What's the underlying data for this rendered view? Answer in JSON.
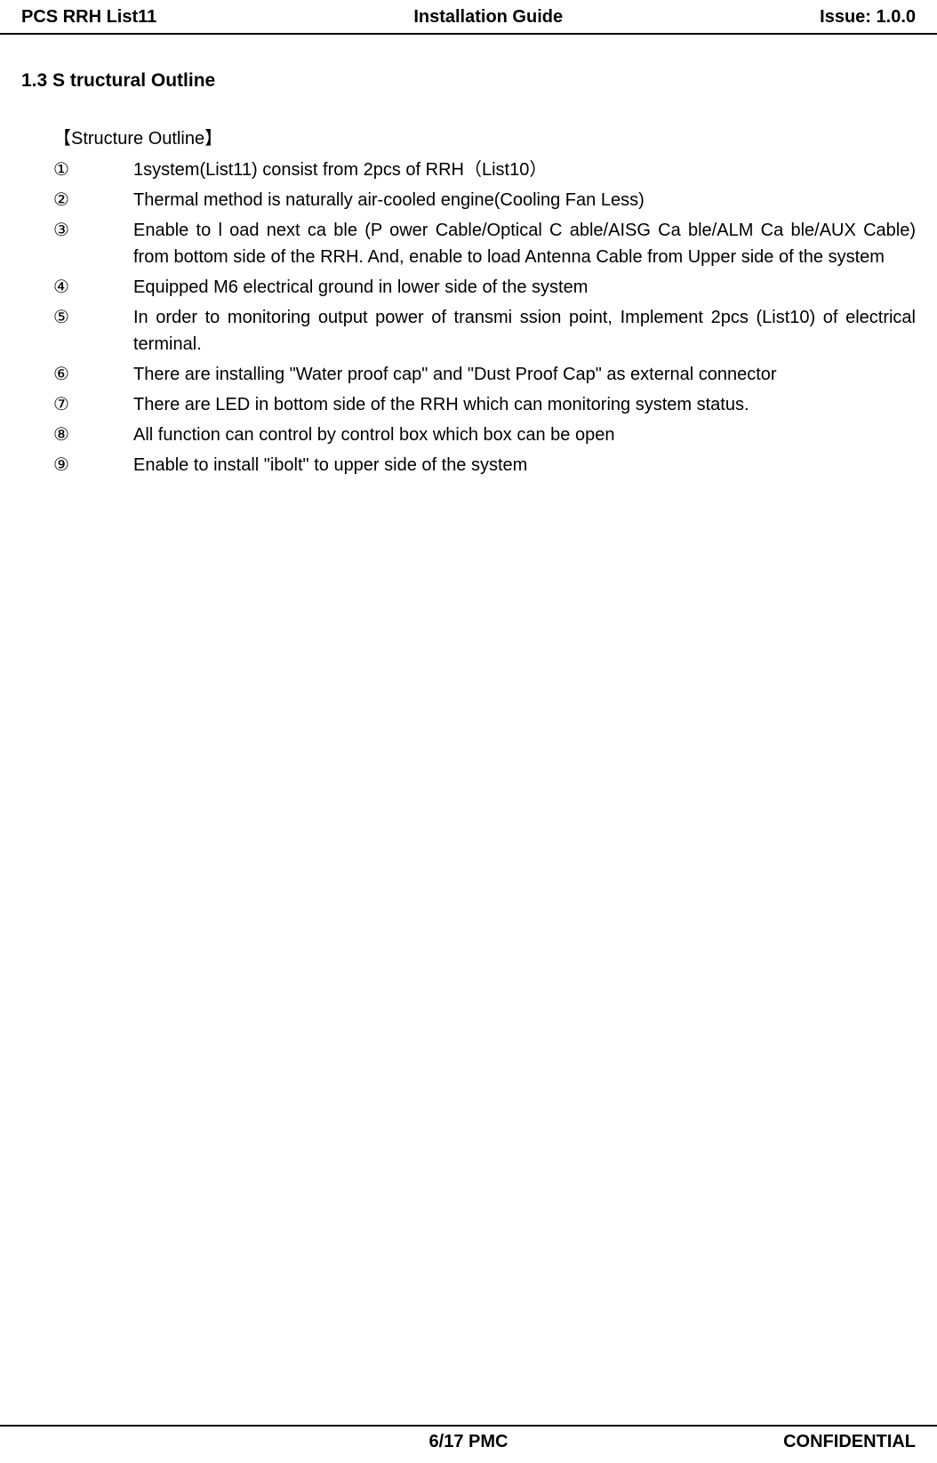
{
  "header": {
    "left": "PCS RRH List11",
    "center": "Installation Guide",
    "right": "Issue: 1.0.0"
  },
  "section": {
    "heading": "1.3 S tructural Outline",
    "subheading": "【Structure Outline】"
  },
  "outline": [
    {
      "number": "①",
      "text": "1system(List11) consist from 2pcs of RRH（List10）"
    },
    {
      "number": "②",
      "text": "Thermal method is naturally air-cooled engine(Cooling Fan Less)"
    },
    {
      "number": "③",
      "text": "Enable to l oad  next ca ble (P ower  Cable/Optical C able/AISG Ca ble/ALM Ca ble/AUX Cable) from bottom side of the RRH. And, enable to load Antenna Cable from Upper side of the system"
    },
    {
      "number": "④",
      "text": "Equipped M6 electrical ground in lower side of the system"
    },
    {
      "number": "⑤",
      "text": "In order to  monitoring output power of transmi ssion point, Implement 2pcs (List10) of electrical terminal."
    },
    {
      "number": "⑥",
      "text": "There are installing \"Water proof cap\" and \"Dust Proof Cap\" as external connector"
    },
    {
      "number": "⑦",
      "text": "There are LED in bottom side of the RRH which can monitoring system status."
    },
    {
      "number": "⑧",
      "text": "All function can control by control box which box can be open"
    },
    {
      "number": "⑨",
      "text": "Enable to install \"ibolt\" to upper side of the system"
    }
  ],
  "footer": {
    "center": "6/17 PMC",
    "right": "CONFIDENTIAL"
  },
  "colors": {
    "text": "#000000",
    "background": "#ffffff",
    "border": "#000000"
  },
  "typography": {
    "body_fontsize": 20,
    "heading_fontsize": 21,
    "font_family": "Arial, sans-serif"
  }
}
